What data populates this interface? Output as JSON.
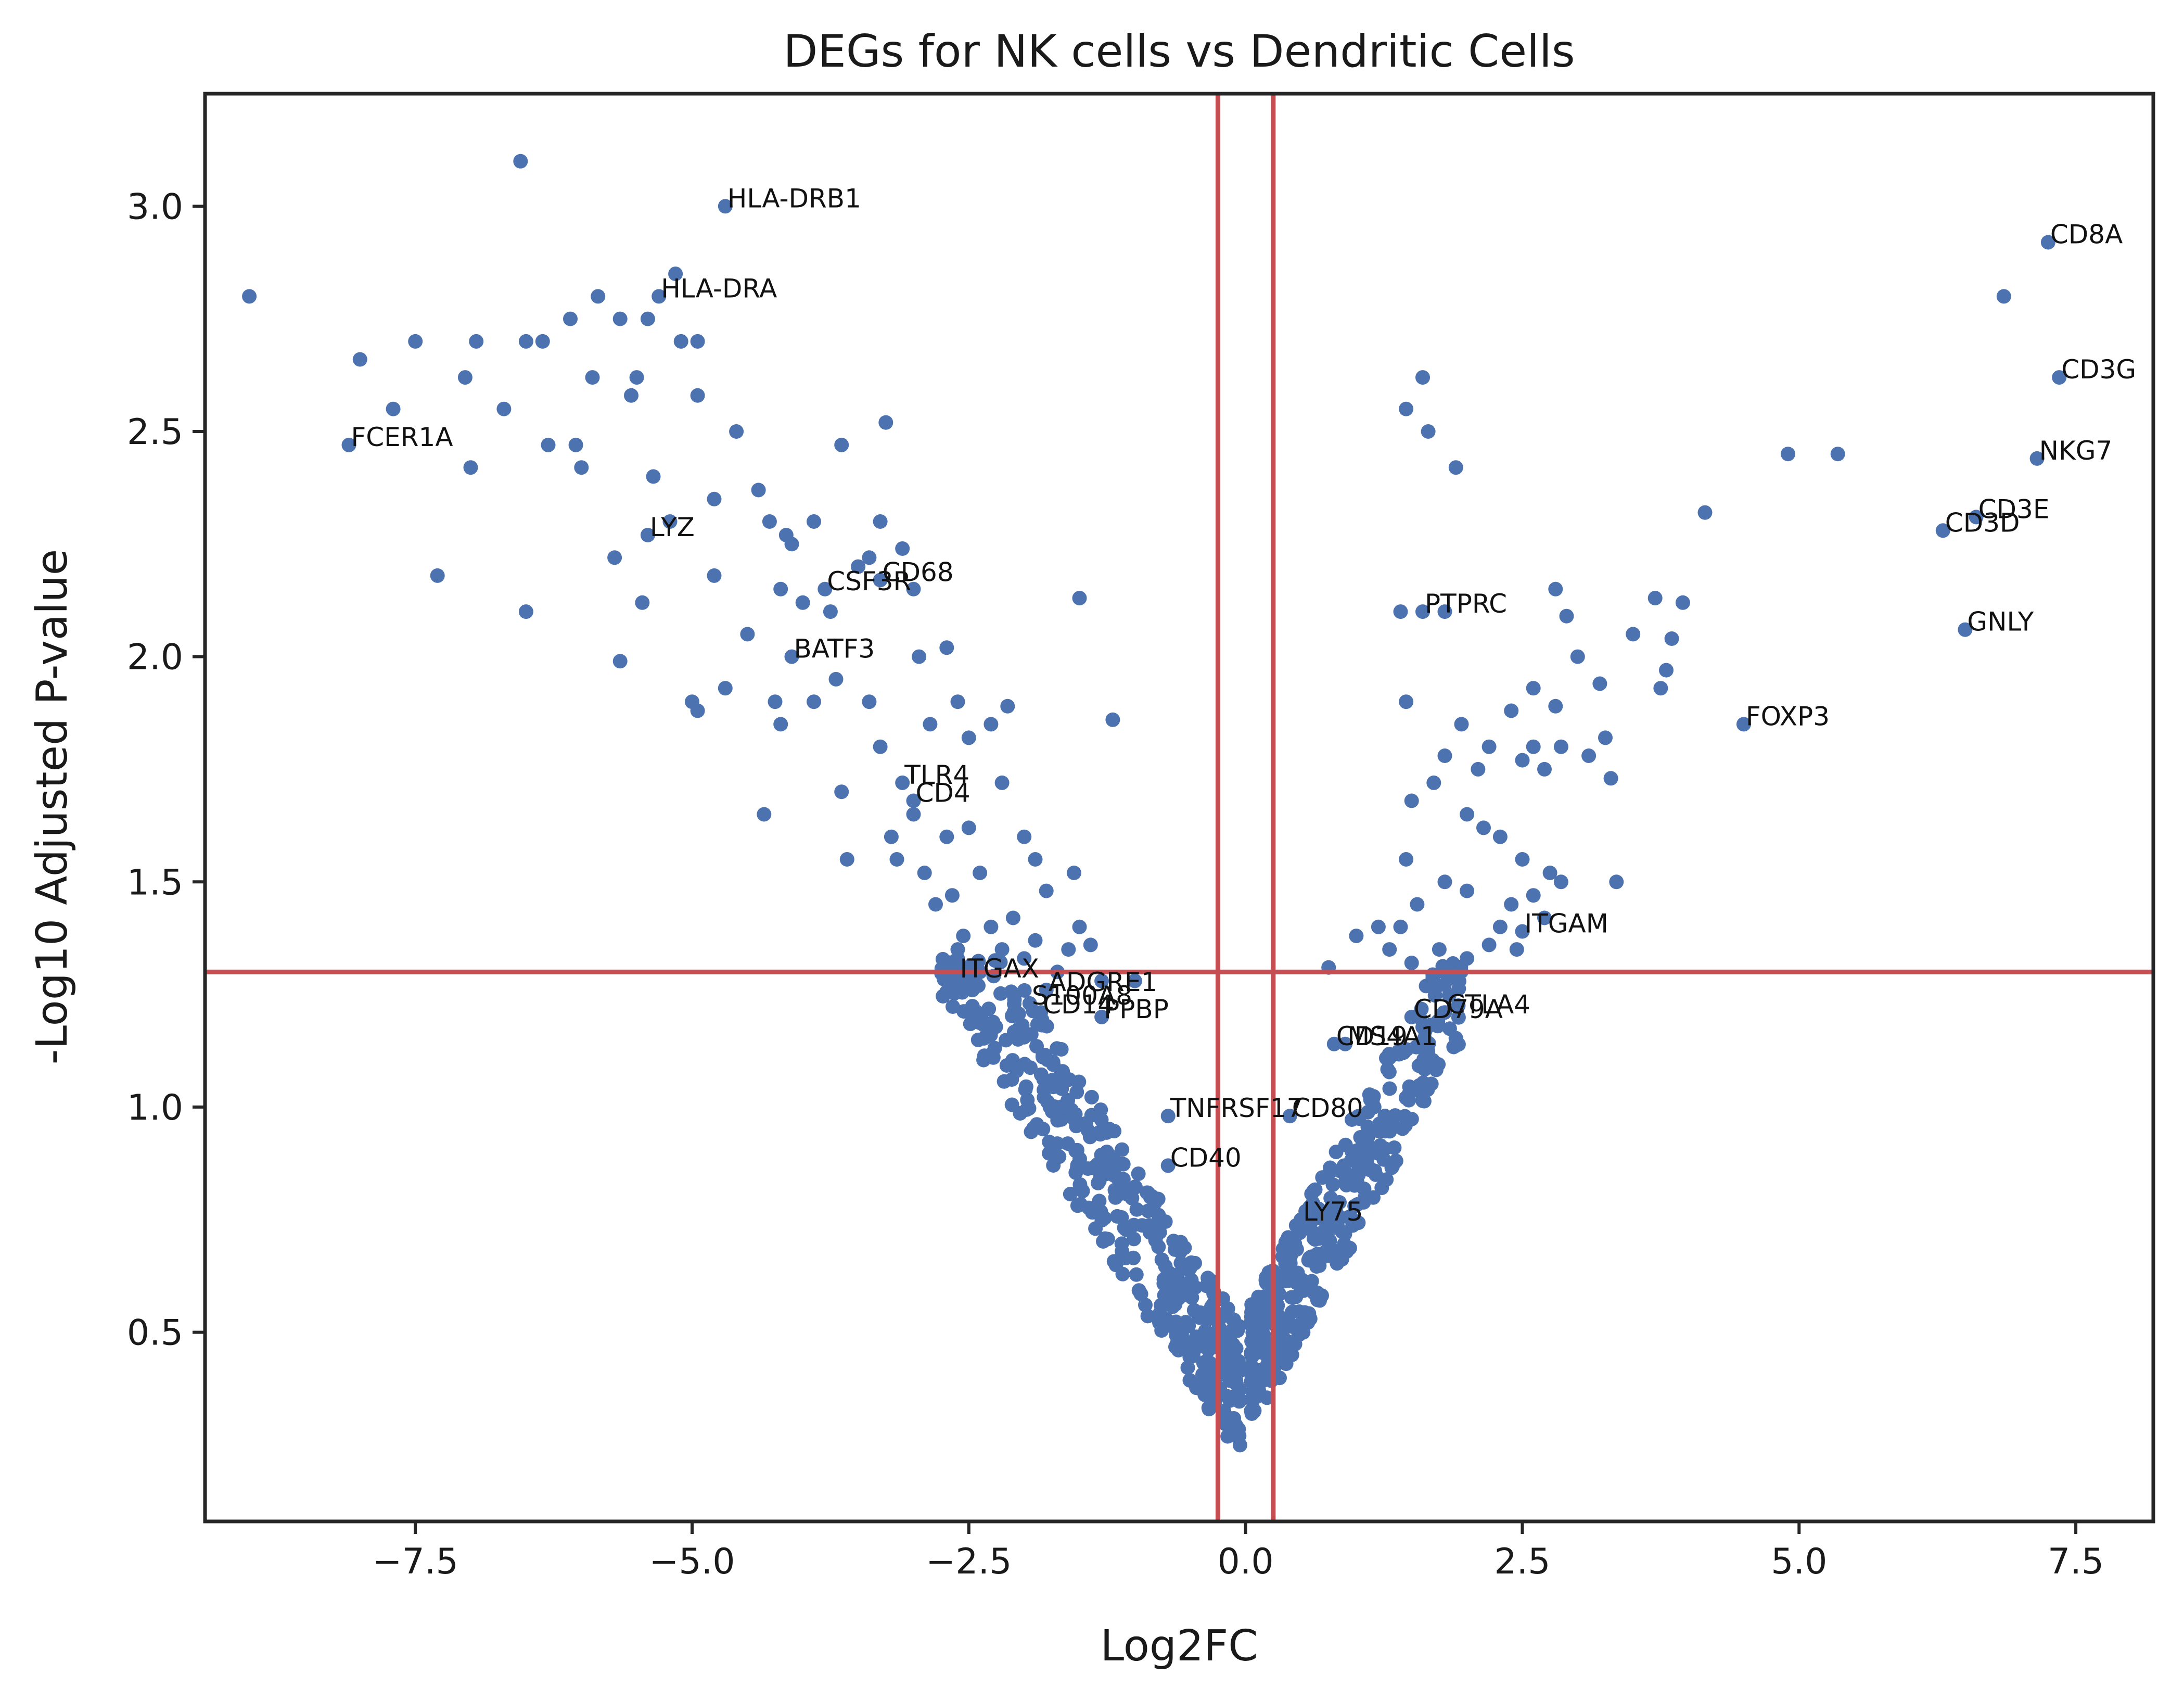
{
  "chart_data": {
    "type": "scatter",
    "title": "DEGs for NK cells vs Dendritic Cells",
    "xlabel": "Log2FC",
    "ylabel": "-Log10 Adjusted P-value",
    "xlim": [
      -9.4,
      8.2
    ],
    "ylim": [
      0.08,
      3.25
    ],
    "xticks": [
      -7.5,
      -5.0,
      -2.5,
      0.0,
      2.5,
      5.0,
      7.5
    ],
    "xtick_labels": [
      "−7.5",
      "−5.0",
      "−2.5",
      "0.0",
      "2.5",
      "5.0",
      "7.5"
    ],
    "yticks": [
      0.5,
      1.0,
      1.5,
      2.0,
      2.5,
      3.0
    ],
    "ytick_labels": [
      "0.5",
      "1.0",
      "1.5",
      "2.0",
      "2.5",
      "3.0"
    ],
    "grid": false,
    "point_color": "#4c72b0",
    "threshold_color": "#c44e52",
    "thresholds": {
      "log2fc": [
        -0.25,
        0.25
      ],
      "neglog10p": 1.3
    },
    "labeled_genes": [
      {
        "gene": "HLA-DRB1",
        "x": -4.7,
        "y": 3.0
      },
      {
        "gene": "HLA-DRA",
        "x": -5.3,
        "y": 2.8
      },
      {
        "gene": "FCER1A",
        "x": -8.1,
        "y": 2.47
      },
      {
        "gene": "LYZ",
        "x": -5.4,
        "y": 2.27
      },
      {
        "gene": "CD68",
        "x": -3.3,
        "y": 2.17
      },
      {
        "gene": "CSF3R",
        "x": -3.8,
        "y": 2.15
      },
      {
        "gene": "BATF3",
        "x": -4.1,
        "y": 2.0
      },
      {
        "gene": "TLR4",
        "x": -3.1,
        "y": 1.72
      },
      {
        "gene": "CD4",
        "x": -3.0,
        "y": 1.68
      },
      {
        "gene": "ITGAX",
        "x": -2.6,
        "y": 1.29
      },
      {
        "gene": "ADGRE1",
        "x": -1.8,
        "y": 1.26
      },
      {
        "gene": "S100A8",
        "x": -1.95,
        "y": 1.23
      },
      {
        "gene": "CD14",
        "x": -1.85,
        "y": 1.21
      },
      {
        "gene": "PPBP",
        "x": -1.3,
        "y": 1.2
      },
      {
        "gene": "TNFRSF17",
        "x": -0.7,
        "y": 0.98
      },
      {
        "gene": "CD80",
        "x": 0.4,
        "y": 0.98
      },
      {
        "gene": "CD40",
        "x": -0.7,
        "y": 0.87
      },
      {
        "gene": "LY75",
        "x": 0.5,
        "y": 0.75
      },
      {
        "gene": "CD19",
        "x": 0.8,
        "y": 1.14
      },
      {
        "gene": "MS4A1",
        "x": 0.9,
        "y": 1.14
      },
      {
        "gene": "CD79A",
        "x": 1.5,
        "y": 1.2
      },
      {
        "gene": "CTLA4",
        "x": 1.8,
        "y": 1.21
      },
      {
        "gene": "ITGAM",
        "x": 2.5,
        "y": 1.39
      },
      {
        "gene": "PTPRC",
        "x": 1.6,
        "y": 2.1
      },
      {
        "gene": "FOXP3",
        "x": 4.5,
        "y": 1.85
      },
      {
        "gene": "CD8A",
        "x": 7.25,
        "y": 2.92
      },
      {
        "gene": "CD3G",
        "x": 7.35,
        "y": 2.62
      },
      {
        "gene": "NKG7",
        "x": 7.15,
        "y": 2.44
      },
      {
        "gene": "CD3E",
        "x": 6.6,
        "y": 2.31
      },
      {
        "gene": "CD3D",
        "x": 6.3,
        "y": 2.28
      },
      {
        "gene": "GNLY",
        "x": 6.5,
        "y": 2.06
      }
    ],
    "extra_points": [
      [
        -9.0,
        2.8
      ],
      [
        -6.55,
        3.1
      ],
      [
        -8.0,
        2.66
      ],
      [
        -7.7,
        2.55
      ],
      [
        -7.5,
        2.7
      ],
      [
        -7.05,
        2.62
      ],
      [
        -7.0,
        2.42
      ],
      [
        -6.95,
        2.7
      ],
      [
        -6.7,
        2.55
      ],
      [
        -6.5,
        2.7
      ],
      [
        -6.35,
        2.7
      ],
      [
        -6.3,
        2.47
      ],
      [
        -6.1,
        2.75
      ],
      [
        -6.05,
        2.47
      ],
      [
        -6.0,
        2.42
      ],
      [
        -5.9,
        2.62
      ],
      [
        -5.85,
        2.8
      ],
      [
        -5.65,
        2.75
      ],
      [
        -5.55,
        2.58
      ],
      [
        -5.5,
        2.62
      ],
      [
        -5.4,
        2.75
      ],
      [
        -5.35,
        2.4
      ],
      [
        -5.2,
        2.3
      ],
      [
        -5.15,
        2.85
      ],
      [
        -5.1,
        2.7
      ],
      [
        -4.95,
        2.7
      ],
      [
        -4.95,
        2.58
      ],
      [
        -4.8,
        2.35
      ],
      [
        -4.6,
        2.5
      ],
      [
        -7.3,
        2.18
      ],
      [
        -6.5,
        2.1
      ],
      [
        -5.7,
        2.22
      ],
      [
        -5.65,
        1.99
      ],
      [
        -5.45,
        2.12
      ],
      [
        -5.0,
        1.9
      ],
      [
        -4.95,
        1.88
      ],
      [
        -4.8,
        2.18
      ],
      [
        -4.7,
        1.93
      ],
      [
        -4.5,
        2.05
      ],
      [
        -4.4,
        2.37
      ],
      [
        -4.3,
        2.3
      ],
      [
        -4.2,
        2.15
      ],
      [
        -4.15,
        2.27
      ],
      [
        -4.1,
        2.25
      ],
      [
        -4.0,
        2.12
      ],
      [
        -3.9,
        2.3
      ],
      [
        -3.75,
        2.1
      ],
      [
        -3.65,
        2.47
      ],
      [
        -3.5,
        2.2
      ],
      [
        -3.4,
        2.22
      ],
      [
        -3.3,
        2.3
      ],
      [
        -3.25,
        2.52
      ],
      [
        -3.1,
        2.24
      ],
      [
        -3.0,
        2.15
      ],
      [
        -2.95,
        2.0
      ],
      [
        -2.85,
        1.85
      ],
      [
        -2.7,
        2.02
      ],
      [
        -2.6,
        1.9
      ],
      [
        -2.5,
        1.82
      ],
      [
        -2.3,
        1.85
      ],
      [
        -2.2,
        1.72
      ],
      [
        -2.15,
        1.89
      ],
      [
        -2.0,
        1.6
      ],
      [
        -1.9,
        1.55
      ],
      [
        -1.8,
        1.48
      ],
      [
        -1.5,
        2.13
      ],
      [
        -1.2,
        1.86
      ],
      [
        -4.35,
        1.65
      ],
      [
        -4.25,
        1.9
      ],
      [
        -4.2,
        1.85
      ],
      [
        -3.9,
        1.9
      ],
      [
        -3.7,
        1.95
      ],
      [
        -3.65,
        1.7
      ],
      [
        -3.6,
        1.55
      ],
      [
        -3.4,
        1.9
      ],
      [
        -3.3,
        1.8
      ],
      [
        -3.2,
        1.6
      ],
      [
        -3.15,
        1.55
      ],
      [
        -3.0,
        1.65
      ],
      [
        -2.9,
        1.52
      ],
      [
        -2.8,
        1.45
      ],
      [
        -2.7,
        1.6
      ],
      [
        -2.65,
        1.47
      ],
      [
        -2.55,
        1.38
      ],
      [
        -2.5,
        1.62
      ],
      [
        -2.4,
        1.52
      ],
      [
        -2.3,
        1.4
      ],
      [
        -2.2,
        1.35
      ],
      [
        -2.1,
        1.42
      ],
      [
        -2.0,
        1.33
      ],
      [
        -1.9,
        1.37
      ],
      [
        -1.7,
        1.3
      ],
      [
        -1.55,
        1.52
      ],
      [
        -1.5,
        1.4
      ],
      [
        -1.4,
        1.36
      ],
      [
        -2.45,
        1.3
      ],
      [
        -2.6,
        1.35
      ],
      [
        -2.4,
        1.3
      ],
      [
        -1.6,
        1.35
      ],
      [
        -1.3,
        1.28
      ],
      [
        -1.0,
        1.28
      ],
      [
        1.6,
        2.62
      ],
      [
        1.45,
        2.55
      ],
      [
        1.65,
        2.5
      ],
      [
        1.9,
        2.42
      ],
      [
        1.8,
        2.1
      ],
      [
        1.4,
        2.1
      ],
      [
        1.45,
        1.9
      ],
      [
        2.8,
        2.15
      ],
      [
        2.9,
        2.09
      ],
      [
        3.0,
        2.0
      ],
      [
        3.2,
        1.94
      ],
      [
        3.5,
        2.05
      ],
      [
        3.7,
        2.13
      ],
      [
        3.85,
        2.04
      ],
      [
        3.95,
        2.12
      ],
      [
        3.8,
        1.97
      ],
      [
        3.75,
        1.93
      ],
      [
        4.15,
        2.32
      ],
      [
        4.9,
        2.45
      ],
      [
        5.35,
        2.45
      ],
      [
        6.85,
        2.8
      ],
      [
        2.4,
        1.88
      ],
      [
        2.6,
        1.93
      ],
      [
        2.8,
        1.89
      ],
      [
        3.1,
        1.78
      ],
      [
        3.25,
        1.82
      ],
      [
        3.3,
        1.73
      ],
      [
        2.6,
        1.8
      ],
      [
        2.7,
        1.75
      ],
      [
        2.85,
        1.8
      ],
      [
        2.5,
        1.77
      ],
      [
        2.2,
        1.8
      ],
      [
        2.1,
        1.75
      ],
      [
        1.95,
        1.85
      ],
      [
        1.8,
        1.78
      ],
      [
        1.7,
        1.72
      ],
      [
        1.5,
        1.68
      ],
      [
        1.45,
        1.55
      ],
      [
        2.0,
        1.65
      ],
      [
        2.15,
        1.62
      ],
      [
        2.3,
        1.6
      ],
      [
        2.5,
        1.55
      ],
      [
        2.75,
        1.52
      ],
      [
        2.85,
        1.5
      ],
      [
        3.35,
        1.5
      ],
      [
        2.6,
        1.47
      ],
      [
        2.4,
        1.45
      ],
      [
        2.0,
        1.48
      ],
      [
        1.8,
        1.5
      ],
      [
        1.55,
        1.45
      ],
      [
        1.4,
        1.4
      ],
      [
        1.2,
        1.4
      ],
      [
        1.0,
        1.38
      ],
      [
        2.2,
        1.36
      ],
      [
        2.45,
        1.35
      ],
      [
        2.0,
        1.33
      ],
      [
        1.75,
        1.35
      ],
      [
        1.5,
        1.32
      ],
      [
        1.3,
        1.35
      ],
      [
        0.75,
        1.31
      ],
      [
        2.7,
        1.42
      ],
      [
        2.3,
        1.4
      ]
    ],
    "cloud_points": 820
  }
}
